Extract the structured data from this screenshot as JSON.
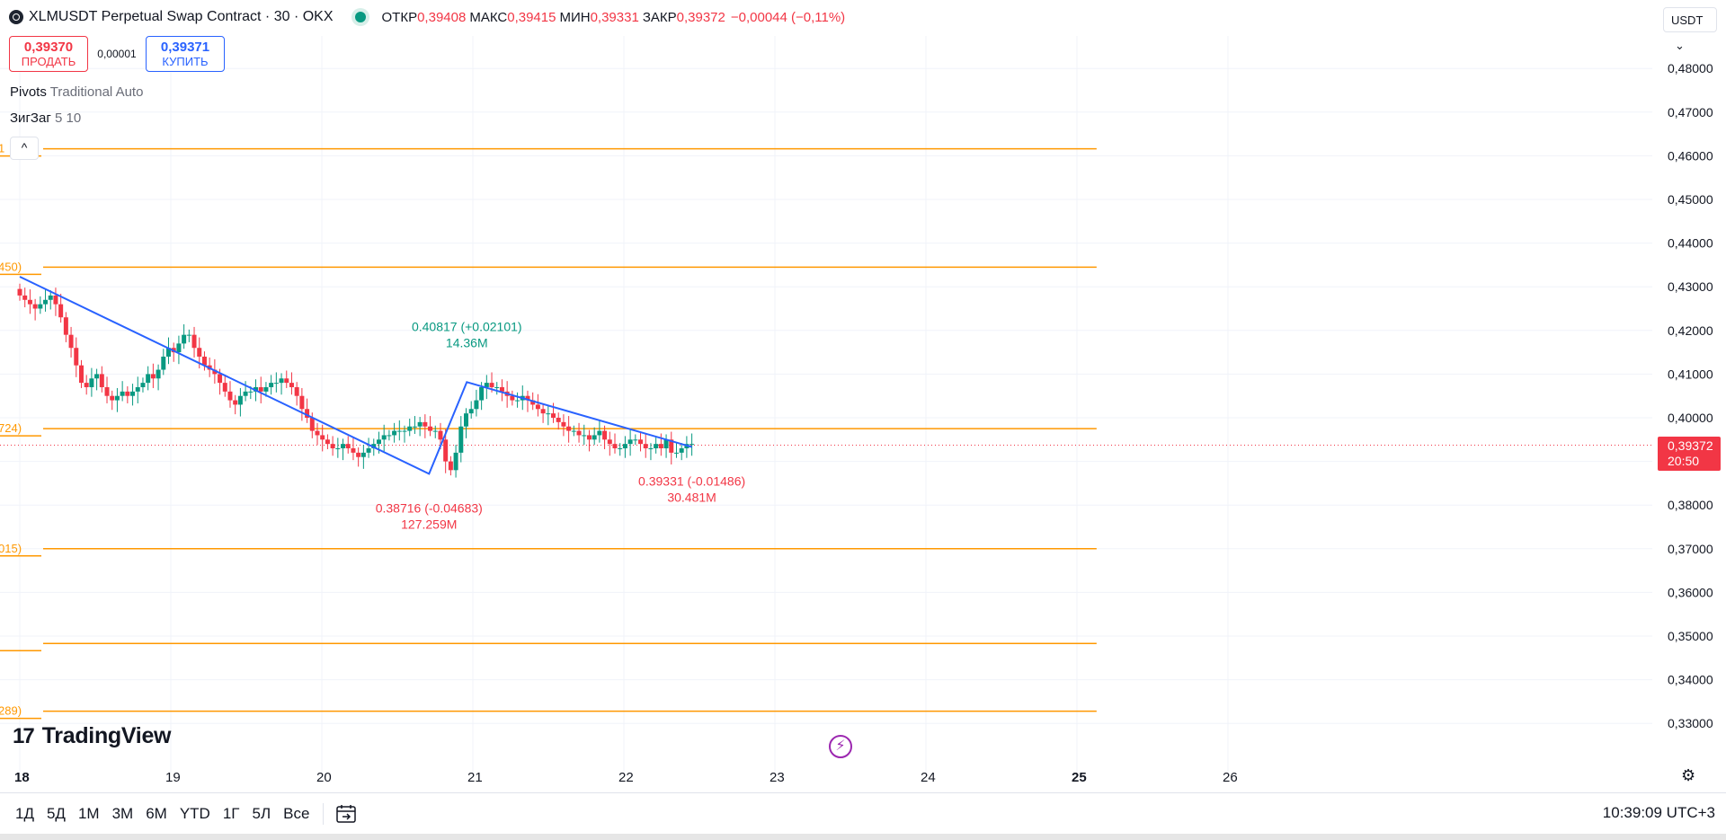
{
  "legend": {
    "title": "XLMUSDT Perpetual Swap Contract · 30 · OKX",
    "open_label": "ОТКР",
    "open_value": "0,39408",
    "high_label": "МАКС",
    "high_value": "0,39415",
    "low_label": "МИН",
    "low_value": "0,39331",
    "close_label": "ЗАКР",
    "close_value": "0,39372",
    "change": "−0,00044 (−0,11%)"
  },
  "trade": {
    "sell_price": "0,39370",
    "sell_label": "ПРОДАТЬ",
    "spread": "0,00001",
    "buy_price": "0,39371",
    "buy_label": "КУПИТЬ"
  },
  "indicators": {
    "pivots_name": "Pivots",
    "pivots_params": "Traditional Auto",
    "zigzag_name": "ЗигЗаг",
    "zigzag_params": "5 10",
    "collapse_icon": "^"
  },
  "currency": {
    "label": "USDT",
    "chevron": "⌄"
  },
  "price_badge": {
    "price": "0,39372",
    "countdown": "20:50"
  },
  "brand": {
    "logo_mark": "17",
    "name": "TradingView"
  },
  "flash_icon": "⚡",
  "settings_icon": "⚙",
  "bottom": {
    "ranges": [
      "1Д",
      "5Д",
      "1М",
      "3М",
      "6М",
      "YTD",
      "1Г",
      "5Л",
      "Все"
    ],
    "calendar_icon": "calendar-icon",
    "clock": "10:39:09 UTC+3"
  },
  "colors": {
    "up": "#089981",
    "down": "#f23645",
    "pivot": "#ff9800",
    "zigzag": "#2962ff"
  },
  "chart_data": {
    "type": "candlestick",
    "y_axis": {
      "min": 0.32,
      "max": 0.485,
      "ticks": [
        0.48,
        0.47,
        0.46,
        0.45,
        0.44,
        0.43,
        0.42,
        0.41,
        0.4,
        0.39,
        0.38,
        0.37,
        0.36,
        0.35,
        0.34,
        0.33
      ],
      "tick_labels": [
        "0,48000",
        "0,47000",
        "0,46000",
        "0,45000",
        "0,44000",
        "0,43000",
        "0,42000",
        "0,41000",
        "0,40000",
        "0,39000",
        "0,38000",
        "0,37000",
        "0,36000",
        "0,35000",
        "0,34000",
        "0,33000"
      ]
    },
    "x_axis": {
      "labels": [
        "18",
        "19",
        "20",
        "21",
        "22",
        "23",
        "24",
        "25",
        "26"
      ],
      "day_values": [
        18,
        19,
        20,
        21,
        22,
        23,
        24,
        25,
        26
      ],
      "min": 18,
      "max": 26.9
    },
    "grid": true,
    "current_price": 0.39372,
    "pivot_levels": [
      {
        "label": "1",
        "value": 0.4616
      },
      {
        "label": "450)",
        "value": 0.4345
      },
      {
        "label": "724)",
        "value": 0.3975
      },
      {
        "label": "015)",
        "value": 0.37
      },
      {
        "label": "",
        "value": 0.3483
      },
      {
        "label": "289)",
        "value": 0.3328
      }
    ],
    "pivot_x_end": 25.13,
    "zigzag": [
      {
        "x": 18.0,
        "y": 0.4323
      },
      {
        "x": 20.71,
        "y": 0.38716
      },
      {
        "x": 20.96,
        "y": 0.40817
      },
      {
        "x": 22.45,
        "y": 0.39331
      }
    ],
    "zigzag_labels": [
      {
        "x": 20.71,
        "y": 0.38716,
        "line1": "0.38716 (-0.04683)",
        "line2": "127.259M",
        "color": "#f23645",
        "pos": "below"
      },
      {
        "x": 20.96,
        "y": 0.40817,
        "line1": "0.40817 (+0.02101)",
        "line2": "14.36M",
        "color": "#089981",
        "pos": "above"
      },
      {
        "x": 22.45,
        "y": 0.39331,
        "line1": "0.39331 (-0.01486)",
        "line2": "30.481M",
        "color": "#f23645",
        "pos": "below"
      }
    ],
    "closes": [
      0.428,
      0.427,
      0.426,
      0.425,
      0.426,
      0.427,
      0.428,
      0.426,
      0.423,
      0.419,
      0.416,
      0.412,
      0.408,
      0.407,
      0.409,
      0.41,
      0.407,
      0.405,
      0.404,
      0.405,
      0.406,
      0.405,
      0.406,
      0.407,
      0.408,
      0.41,
      0.409,
      0.411,
      0.414,
      0.416,
      0.415,
      0.417,
      0.419,
      0.419,
      0.416,
      0.414,
      0.412,
      0.411,
      0.41,
      0.408,
      0.406,
      0.404,
      0.403,
      0.405,
      0.406,
      0.406,
      0.407,
      0.406,
      0.407,
      0.408,
      0.408,
      0.409,
      0.408,
      0.407,
      0.405,
      0.402,
      0.4,
      0.397,
      0.396,
      0.395,
      0.394,
      0.393,
      0.393,
      0.394,
      0.393,
      0.392,
      0.391,
      0.392,
      0.393,
      0.394,
      0.395,
      0.396,
      0.396,
      0.397,
      0.397,
      0.397,
      0.398,
      0.398,
      0.399,
      0.398,
      0.397,
      0.397,
      0.395,
      0.39,
      0.388,
      0.392,
      0.398,
      0.401,
      0.402,
      0.404,
      0.407,
      0.408,
      0.407,
      0.407,
      0.406,
      0.405,
      0.404,
      0.404,
      0.405,
      0.404,
      0.403,
      0.402,
      0.401,
      0.401,
      0.4,
      0.399,
      0.398,
      0.397,
      0.397,
      0.396,
      0.396,
      0.395,
      0.396,
      0.397,
      0.395,
      0.394,
      0.393,
      0.393,
      0.394,
      0.395,
      0.395,
      0.394,
      0.393,
      0.393,
      0.394,
      0.393,
      0.395,
      0.392,
      0.392,
      0.393,
      0.394,
      0.394
    ]
  }
}
